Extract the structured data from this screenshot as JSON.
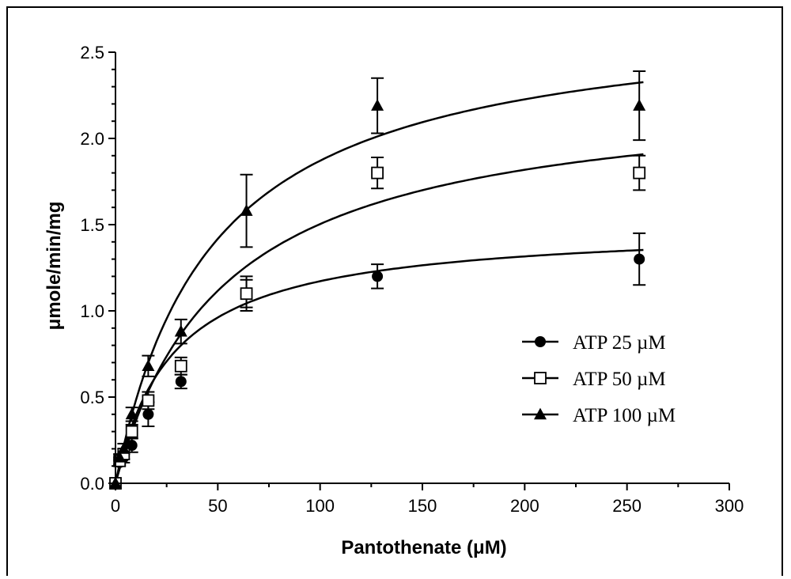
{
  "chart_data": {
    "type": "scatter",
    "xlabel": "Pantothenate (μM)",
    "ylabel": "μmole/min/mg",
    "xlim": [
      0,
      300
    ],
    "ylim": [
      0,
      2.5
    ],
    "xticks": [
      0,
      50,
      100,
      150,
      200,
      250,
      300
    ],
    "xtick_labels": [
      "0",
      "50",
      "100",
      "150",
      "200",
      "250",
      "300"
    ],
    "yticks": [
      0,
      0.5,
      1.0,
      1.5,
      2.0,
      2.5
    ],
    "ytick_labels": [
      "0.0",
      "0.5",
      "1.0",
      "1.5",
      "2.0",
      "2.5"
    ],
    "y_minor_step": 0.1,
    "x_minor_step": 25,
    "grid": false,
    "legend_position": "lower-right",
    "series": [
      {
        "name": "ATP 25 µM",
        "marker": "filled-circle",
        "fit": {
          "model": "michaelis-menten",
          "vmax": 1.5,
          "km": 28
        },
        "points": [
          {
            "x": 0,
            "y": 0.0,
            "err": 0.0
          },
          {
            "x": 2,
            "y": 0.12,
            "err": 0.02
          },
          {
            "x": 4,
            "y": 0.15,
            "err": 0.03
          },
          {
            "x": 8,
            "y": 0.22,
            "err": 0.04
          },
          {
            "x": 16,
            "y": 0.4,
            "err": 0.07
          },
          {
            "x": 32,
            "y": 0.59,
            "err": 0.04
          },
          {
            "x": 64,
            "y": 1.1,
            "err": 0.08
          },
          {
            "x": 128,
            "y": 1.2,
            "err": 0.07
          },
          {
            "x": 256,
            "y": 1.3,
            "err": 0.15
          }
        ]
      },
      {
        "name": "ATP 50 µM",
        "marker": "open-square",
        "fit": {
          "model": "michaelis-menten",
          "vmax": 2.3,
          "km": 53
        },
        "points": [
          {
            "x": 0,
            "y": 0.0,
            "err": 0.0
          },
          {
            "x": 2,
            "y": 0.13,
            "err": 0.02
          },
          {
            "x": 4,
            "y": 0.17,
            "err": 0.03
          },
          {
            "x": 8,
            "y": 0.3,
            "err": 0.04
          },
          {
            "x": 16,
            "y": 0.48,
            "err": 0.05
          },
          {
            "x": 32,
            "y": 0.68,
            "err": 0.05
          },
          {
            "x": 64,
            "y": 1.1,
            "err": 0.1
          },
          {
            "x": 128,
            "y": 1.8,
            "err": 0.09
          },
          {
            "x": 256,
            "y": 1.8,
            "err": 0.1
          }
        ]
      },
      {
        "name": "ATP 100 µM",
        "marker": "filled-triangle",
        "fit": {
          "model": "michaelis-menten",
          "vmax": 2.75,
          "km": 47
        },
        "points": [
          {
            "x": 0,
            "y": 0.0,
            "err": 0.0
          },
          {
            "x": 2,
            "y": 0.15,
            "err": 0.02
          },
          {
            "x": 4,
            "y": 0.2,
            "err": 0.03
          },
          {
            "x": 8,
            "y": 0.4,
            "err": 0.04
          },
          {
            "x": 16,
            "y": 0.68,
            "err": 0.06
          },
          {
            "x": 32,
            "y": 0.88,
            "err": 0.07
          },
          {
            "x": 64,
            "y": 1.58,
            "err": 0.21
          },
          {
            "x": 128,
            "y": 2.19,
            "err": 0.16
          },
          {
            "x": 256,
            "y": 2.19,
            "err": 0.2
          }
        ]
      }
    ]
  }
}
